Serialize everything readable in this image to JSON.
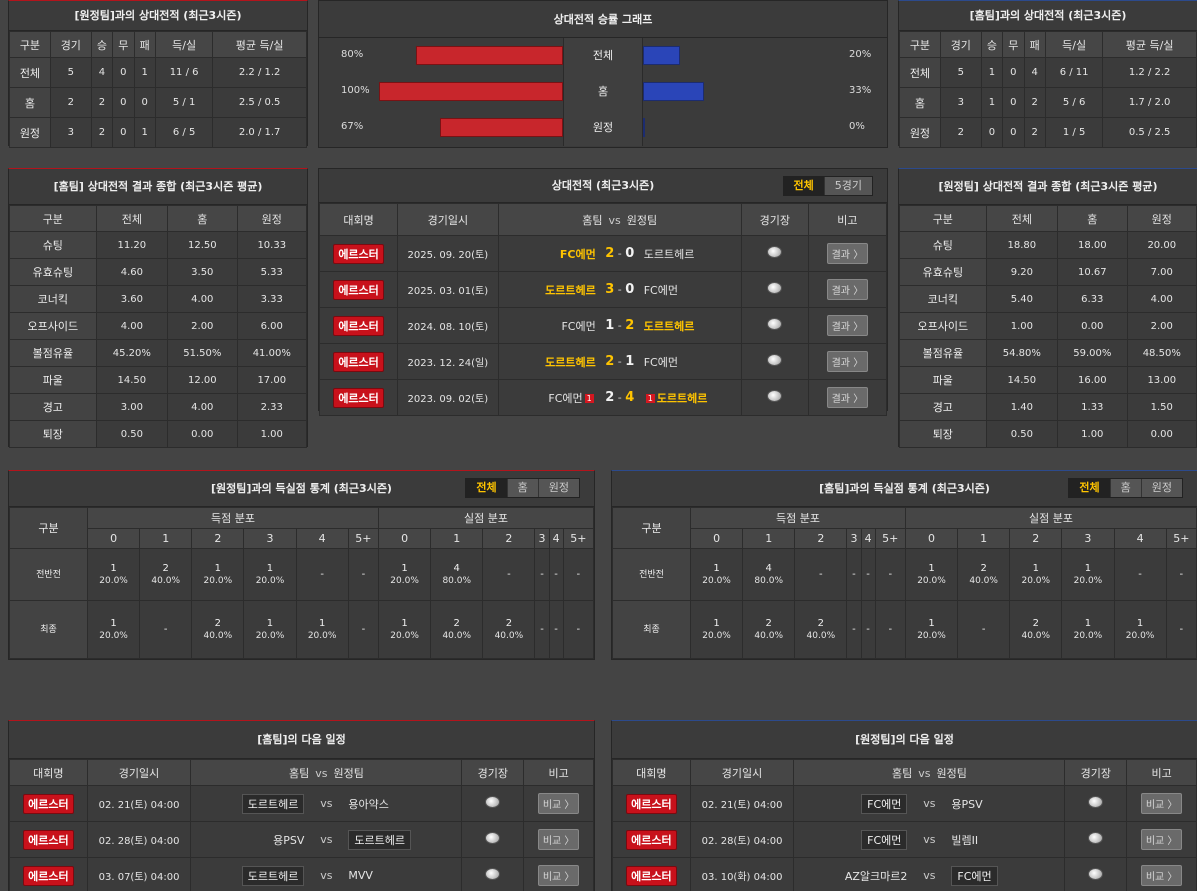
{
  "p1": {
    "title": "[원정팀]과의 상대전적 (최근3시즌)",
    "headers": [
      "구분",
      "경기",
      "승",
      "무",
      "패",
      "득/실",
      "평균 득/실"
    ],
    "rows": [
      [
        "전체",
        "5",
        "4",
        "0",
        "1",
        "11 / 6",
        "2.2 / 1.2"
      ],
      [
        "홈",
        "2",
        "2",
        "0",
        "0",
        "5 / 1",
        "2.5 / 0.5"
      ],
      [
        "원정",
        "3",
        "2",
        "0",
        "1",
        "6 / 5",
        "2.0 / 1.7"
      ]
    ]
  },
  "p2": {
    "title": "상대전적 승률 그래프",
    "rows": [
      {
        "left": "80%",
        "label": "전체",
        "right": "20%",
        "lv": 80,
        "rv": 20
      },
      {
        "left": "100%",
        "label": "홈",
        "right": "33%",
        "lv": 100,
        "rv": 33
      },
      {
        "left": "67%",
        "label": "원정",
        "right": "0%",
        "lv": 67,
        "rv": 0
      }
    ],
    "home_color": "#c8262c",
    "away_color": "#2a45b8"
  },
  "p3": {
    "title": "[홈팀]과의 상대전적 (최근3시즌)",
    "headers": [
      "구분",
      "경기",
      "승",
      "무",
      "패",
      "득/실",
      "평균 득/실"
    ],
    "rows": [
      [
        "전체",
        "5",
        "1",
        "0",
        "4",
        "6 / 11",
        "1.2 / 2.2"
      ],
      [
        "홈",
        "3",
        "1",
        "0",
        "2",
        "5 / 6",
        "1.7 / 2.0"
      ],
      [
        "원정",
        "2",
        "0",
        "0",
        "2",
        "1 / 5",
        "0.5 / 2.5"
      ]
    ]
  },
  "p4": {
    "title": "[홈팀] 상대전적 결과 종합 (최근3시즌 평균)",
    "headers": [
      "구분",
      "전체",
      "홈",
      "원정"
    ],
    "rows": [
      [
        "슈팅",
        "11.20",
        "12.50",
        "10.33"
      ],
      [
        "유효슈팅",
        "4.60",
        "3.50",
        "5.33"
      ],
      [
        "코너킥",
        "3.60",
        "4.00",
        "3.33"
      ],
      [
        "오프사이드",
        "4.00",
        "2.00",
        "6.00"
      ],
      [
        "볼점유율",
        "45.20%",
        "51.50%",
        "41.00%"
      ],
      [
        "파울",
        "14.50",
        "12.00",
        "17.00"
      ],
      [
        "경고",
        "3.00",
        "4.00",
        "2.33"
      ],
      [
        "퇴장",
        "0.50",
        "0.00",
        "1.00"
      ]
    ]
  },
  "p5": {
    "title": "상대전적 (최근3시즌)",
    "tabs": [
      "전체",
      "5경기"
    ],
    "headers": {
      "league": "대회명",
      "date": "경기일시",
      "home": "홈팀",
      "vs": "vs",
      "away": "원정팀",
      "venue": "경기장",
      "note": "비고"
    },
    "matches": [
      {
        "league": "에르스터",
        "date": "2025. 09. 20(토)",
        "home": "FC에먼",
        "hs": "2",
        "as": "0",
        "away": "도르트헤르",
        "hw": true,
        "aw": false,
        "btn": "결과 〉"
      },
      {
        "league": "에르스터",
        "date": "2025. 03. 01(토)",
        "home": "도르트헤르",
        "hs": "3",
        "as": "0",
        "away": "FC에먼",
        "hw": true,
        "aw": false,
        "btn": "결과 〉"
      },
      {
        "league": "에르스터",
        "date": "2024. 08. 10(토)",
        "home": "FC에먼",
        "hs": "1",
        "as": "2",
        "away": "도르트헤르",
        "hw": false,
        "aw": true,
        "btn": "결과 〉"
      },
      {
        "league": "에르스터",
        "date": "2023. 12. 24(일)",
        "home": "도르트헤르",
        "hs": "2",
        "as": "1",
        "away": "FC에먼",
        "hw": true,
        "aw": false,
        "btn": "결과 〉"
      },
      {
        "league": "에르스터",
        "date": "2023. 09. 02(토)",
        "home": "FC에먼",
        "hs": "2",
        "as": "4",
        "away": "도르트헤르",
        "hw": false,
        "aw": true,
        "hcard": "1",
        "acard": "1",
        "btn": "결과 〉"
      }
    ]
  },
  "p6": {
    "title": "[원정팀] 상대전적 결과 종합 (최근3시즌 평균)",
    "headers": [
      "구분",
      "전체",
      "홈",
      "원정"
    ],
    "rows": [
      [
        "슈팅",
        "18.80",
        "18.00",
        "20.00"
      ],
      [
        "유효슈팅",
        "9.20",
        "10.67",
        "7.00"
      ],
      [
        "코너킥",
        "5.40",
        "6.33",
        "4.00"
      ],
      [
        "오프사이드",
        "1.00",
        "0.00",
        "2.00"
      ],
      [
        "볼점유율",
        "54.80%",
        "59.00%",
        "48.50%"
      ],
      [
        "파울",
        "14.50",
        "16.00",
        "13.00"
      ],
      [
        "경고",
        "1.40",
        "1.33",
        "1.50"
      ],
      [
        "퇴장",
        "0.50",
        "1.00",
        "0.00"
      ]
    ]
  },
  "p7": {
    "title": "[원정팀]과의 득실점 통계 (최근3시즌)",
    "tabs": [
      "전체",
      "홈",
      "원정"
    ],
    "col0": "구분",
    "g1": "득점 분포",
    "g2": "실점 분포",
    "cols": [
      "0",
      "1",
      "2",
      "3",
      "4",
      "5+"
    ],
    "rows": [
      {
        "label": "전반전",
        "cells": [
          [
            "1",
            "20.0%"
          ],
          [
            "2",
            "40.0%"
          ],
          [
            "1",
            "20.0%"
          ],
          [
            "1",
            "20.0%"
          ],
          [
            "-",
            ""
          ],
          [
            "-",
            ""
          ],
          [
            "1",
            "20.0%"
          ],
          [
            "4",
            "80.0%"
          ],
          [
            "-",
            ""
          ],
          [
            "-",
            ""
          ],
          [
            "-",
            ""
          ],
          [
            "-",
            ""
          ]
        ]
      },
      {
        "label": "최종",
        "cells": [
          [
            "1",
            "20.0%"
          ],
          [
            "-",
            ""
          ],
          [
            "2",
            "40.0%"
          ],
          [
            "1",
            "20.0%"
          ],
          [
            "1",
            "20.0%"
          ],
          [
            "-",
            ""
          ],
          [
            "1",
            "20.0%"
          ],
          [
            "2",
            "40.0%"
          ],
          [
            "2",
            "40.0%"
          ],
          [
            "-",
            ""
          ],
          [
            "-",
            ""
          ],
          [
            "-",
            ""
          ]
        ]
      }
    ]
  },
  "p8": {
    "title": "[홈팀]과의 득실점 통계 (최근3시즌)",
    "tabs": [
      "전체",
      "홈",
      "원정"
    ],
    "col0": "구분",
    "g1": "득점 분포",
    "g2": "실점 분포",
    "cols": [
      "0",
      "1",
      "2",
      "3",
      "4",
      "5+"
    ],
    "rows": [
      {
        "label": "전반전",
        "cells": [
          [
            "1",
            "20.0%"
          ],
          [
            "4",
            "80.0%"
          ],
          [
            "-",
            ""
          ],
          [
            "-",
            ""
          ],
          [
            "-",
            ""
          ],
          [
            "-",
            ""
          ],
          [
            "1",
            "20.0%"
          ],
          [
            "2",
            "40.0%"
          ],
          [
            "1",
            "20.0%"
          ],
          [
            "1",
            "20.0%"
          ],
          [
            "-",
            ""
          ],
          [
            "-",
            ""
          ]
        ]
      },
      {
        "label": "최종",
        "cells": [
          [
            "1",
            "20.0%"
          ],
          [
            "2",
            "40.0%"
          ],
          [
            "2",
            "40.0%"
          ],
          [
            "-",
            ""
          ],
          [
            "-",
            ""
          ],
          [
            "-",
            ""
          ],
          [
            "1",
            "20.0%"
          ],
          [
            "-",
            ""
          ],
          [
            "2",
            "40.0%"
          ],
          [
            "1",
            "20.0%"
          ],
          [
            "1",
            "20.0%"
          ],
          [
            "-",
            ""
          ]
        ]
      }
    ]
  },
  "p9": {
    "title": "[홈팀]의 다음 일정",
    "headers": {
      "league": "대회명",
      "date": "경기일시",
      "home": "홈팀",
      "vs": "vs",
      "away": "원정팀",
      "venue": "경기장",
      "note": "비고"
    },
    "rows": [
      {
        "league": "에르스터",
        "date": "02. 21(토) 04:00",
        "home": "도르트헤르",
        "away": "용아약스",
        "hb": true,
        "ab": false,
        "vs": "vs",
        "btn": "비교 〉"
      },
      {
        "league": "에르스터",
        "date": "02. 28(토) 04:00",
        "home": "용PSV",
        "away": "도르트헤르",
        "hb": false,
        "ab": true,
        "vs": "vs",
        "btn": "비교 〉"
      },
      {
        "league": "에르스터",
        "date": "03. 07(토) 04:00",
        "home": "도르트헤르",
        "away": "MVV",
        "hb": true,
        "ab": false,
        "vs": "vs",
        "btn": "비교 〉"
      }
    ]
  },
  "p10": {
    "title": "[원정팀]의 다음 일정",
    "headers": {
      "league": "대회명",
      "date": "경기일시",
      "home": "홈팀",
      "vs": "vs",
      "away": "원정팀",
      "venue": "경기장",
      "note": "비고"
    },
    "rows": [
      {
        "league": "에르스터",
        "date": "02. 21(토) 04:00",
        "home": "FC에먼",
        "away": "용PSV",
        "hb": true,
        "ab": false,
        "vs": "vs",
        "btn": "비교 〉"
      },
      {
        "league": "에르스터",
        "date": "02. 28(토) 04:00",
        "home": "FC에먼",
        "away": "빌렘II",
        "hb": true,
        "ab": false,
        "vs": "vs",
        "btn": "비교 〉"
      },
      {
        "league": "에르스터",
        "date": "03. 10(화) 04:00",
        "home": "AZ알크마르2",
        "away": "FC에먼",
        "hb": false,
        "ab": true,
        "vs": "vs",
        "btn": "비교 〉"
      }
    ]
  }
}
